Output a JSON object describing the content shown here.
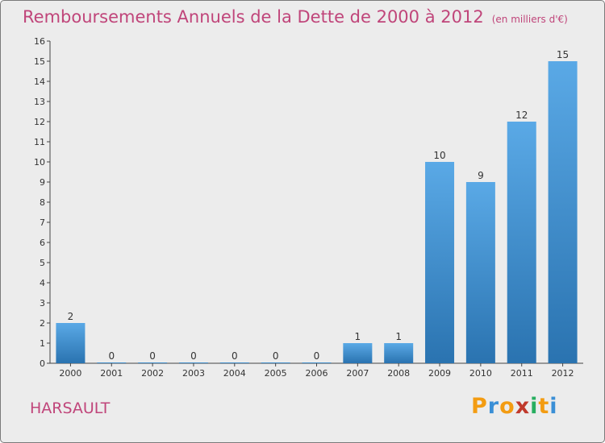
{
  "title": "Remboursements Annuels de la Dette de 2000 à 2012",
  "unit": "(en milliers d'€)",
  "commune": "HARSAULT",
  "logo": {
    "letters": [
      "P",
      "r",
      "o",
      "x",
      "i",
      "t",
      "i"
    ],
    "colors": [
      "#f39c12",
      "#3a8fd6",
      "#f39c12",
      "#c0392b",
      "#27ae60",
      "#f39c12",
      "#3a8fd6"
    ]
  },
  "colors": {
    "bar_top": "#5aa9e6",
    "bar_bottom": "#2a73b0",
    "title": "#c0457a"
  },
  "chart_data": {
    "type": "bar",
    "categories": [
      "2000",
      "2001",
      "2002",
      "2003",
      "2004",
      "2005",
      "2006",
      "2007",
      "2008",
      "2009",
      "2010",
      "2011",
      "2012"
    ],
    "values": [
      2,
      0,
      0,
      0,
      0,
      0,
      0,
      1,
      1,
      10,
      9,
      12,
      15
    ],
    "ylim": [
      0,
      16
    ],
    "yticks": [
      0,
      1,
      2,
      3,
      4,
      5,
      6,
      7,
      8,
      9,
      10,
      11,
      12,
      13,
      14,
      15,
      16
    ],
    "grid": false,
    "legend": "none"
  }
}
